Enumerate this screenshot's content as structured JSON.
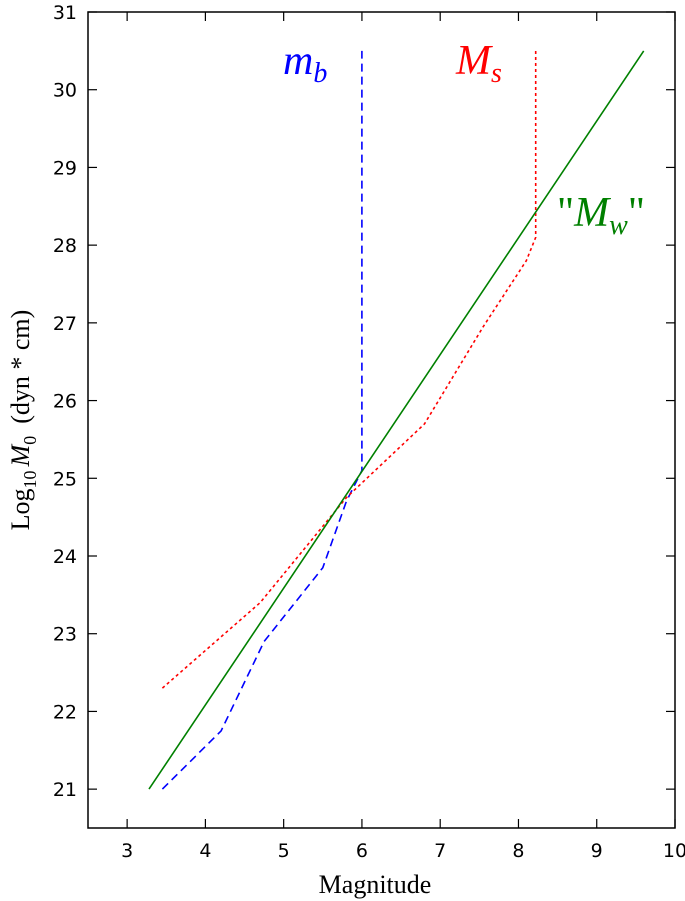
{
  "chart_data": {
    "type": "line",
    "title": "",
    "xlabel": "Magnitude",
    "ylabel_parts": {
      "base": "Log",
      "sub": "10",
      "var": "M",
      "var_sub": "0",
      "units": "(dyn * cm)"
    },
    "xlim": [
      2.5,
      10
    ],
    "ylim": [
      20.5,
      31
    ],
    "xticks": [
      3,
      4,
      5,
      6,
      7,
      8,
      9,
      10
    ],
    "yticks": [
      21,
      22,
      23,
      24,
      25,
      26,
      27,
      28,
      29,
      30,
      31
    ],
    "grid": false,
    "series": [
      {
        "label_main": "m",
        "label_sub": "b",
        "color": "#0000ff",
        "dash": "dashed",
        "points": [
          [
            3.45,
            21.0
          ],
          [
            4.2,
            21.75
          ],
          [
            4.75,
            22.9
          ],
          [
            5.5,
            23.85
          ],
          [
            5.8,
            24.7
          ],
          [
            6.0,
            25.1
          ],
          [
            6.0,
            30.5
          ]
        ]
      },
      {
        "label_main": "M",
        "label_sub": "s",
        "color": "#ff0000",
        "dash": "dotted",
        "points": [
          [
            3.45,
            22.3
          ],
          [
            4.7,
            23.4
          ],
          [
            5.8,
            24.75
          ],
          [
            6.8,
            25.7
          ],
          [
            7.55,
            26.95
          ],
          [
            8.1,
            27.8
          ],
          [
            8.22,
            28.1
          ],
          [
            8.22,
            30.5
          ]
        ]
      },
      {
        "label_pre": "\"",
        "label_main": "M",
        "label_sub": "w",
        "label_post": "\"",
        "color": "#008000",
        "dash": "solid",
        "points": [
          [
            3.28,
            21.0
          ],
          [
            9.6,
            30.5
          ]
        ]
      }
    ]
  }
}
